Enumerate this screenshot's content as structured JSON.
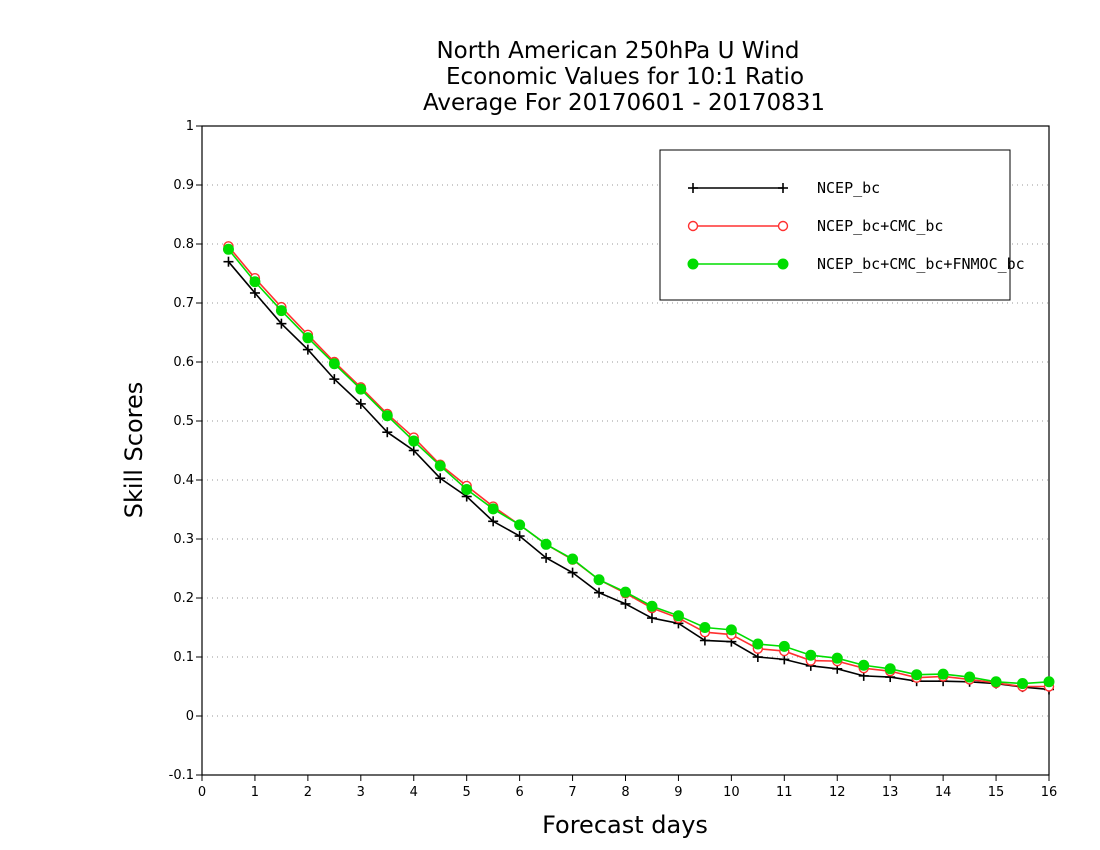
{
  "chart_data": {
    "type": "line",
    "title": [
      "North American 250hPa U Wind",
      "Economic Values for 10:1 Ratio",
      "Average For 20170601 - 20170831"
    ],
    "xlabel": "Forecast days",
    "ylabel": "Skill Scores",
    "xlim": [
      0,
      16
    ],
    "ylim": [
      -0.1,
      1
    ],
    "xticks": [
      "0",
      "1",
      "2",
      "3",
      "4",
      "5",
      "6",
      "7",
      "8",
      "9",
      "10",
      "11",
      "12",
      "13",
      "14",
      "15",
      "16"
    ],
    "yticks": [
      "-0.1",
      "0",
      "0.1",
      "0.2",
      "0.3",
      "0.4",
      "0.5",
      "0.6",
      "0.7",
      "0.8",
      "0.9",
      "1"
    ],
    "grid": "horizontal-dotted",
    "legend_position": "top-right",
    "x": [
      0.5,
      1,
      1.5,
      2,
      2.5,
      3,
      3.5,
      4,
      4.5,
      5,
      5.5,
      6,
      6.5,
      7,
      7.5,
      8,
      8.5,
      9,
      9.5,
      10,
      10.5,
      11,
      11.5,
      12,
      12.5,
      13,
      13.5,
      14,
      14.5,
      15,
      15.5,
      16
    ],
    "series": [
      {
        "name": "NCEP_bc",
        "color": "#000000",
        "marker": "plus",
        "values": [
          0.77,
          0.717,
          0.665,
          0.621,
          0.571,
          0.529,
          0.481,
          0.45,
          0.403,
          0.372,
          0.33,
          0.305,
          0.268,
          0.243,
          0.209,
          0.19,
          0.166,
          0.157,
          0.128,
          0.126,
          0.1,
          0.096,
          0.085,
          0.08,
          0.068,
          0.066,
          0.059,
          0.059,
          0.058,
          0.055,
          0.049,
          0.045
        ]
      },
      {
        "name": "NCEP_bc+CMC_bc",
        "color": "#ff3030",
        "marker": "open-circle",
        "values": [
          0.796,
          0.742,
          0.693,
          0.646,
          0.6,
          0.557,
          0.512,
          0.472,
          0.426,
          0.39,
          0.355,
          0.324,
          0.291,
          0.265,
          0.231,
          0.208,
          0.183,
          0.166,
          0.142,
          0.138,
          0.114,
          0.11,
          0.094,
          0.093,
          0.081,
          0.076,
          0.065,
          0.067,
          0.062,
          0.056,
          0.05,
          0.05
        ]
      },
      {
        "name": "NCEP_bc+CMC_bc+FNMOC_bc",
        "color": "#00dd00",
        "marker": "filled-circle",
        "values": [
          0.791,
          0.736,
          0.687,
          0.641,
          0.597,
          0.554,
          0.509,
          0.466,
          0.424,
          0.384,
          0.351,
          0.324,
          0.291,
          0.266,
          0.231,
          0.21,
          0.186,
          0.17,
          0.15,
          0.146,
          0.122,
          0.118,
          0.103,
          0.098,
          0.086,
          0.08,
          0.07,
          0.071,
          0.066,
          0.058,
          0.055,
          0.058
        ]
      }
    ]
  }
}
